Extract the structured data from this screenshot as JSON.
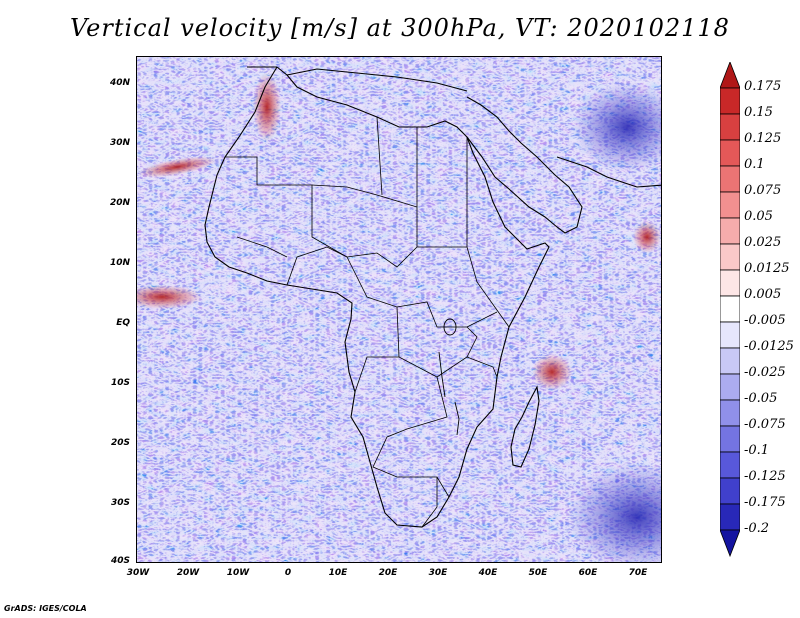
{
  "title": "Vertical velocity [m/s] at 300hPa, VT: 2020102118",
  "field": {
    "variable": "Vertical velocity",
    "units": "m/s",
    "level": "300hPa",
    "valid_time": "2020102118"
  },
  "axes": {
    "lat_labels": [
      "40N",
      "30N",
      "20N",
      "10N",
      "EQ",
      "10S",
      "20S",
      "30S",
      "40S"
    ],
    "lon_labels": [
      "30W",
      "20W",
      "10W",
      "0",
      "10E",
      "20E",
      "30E",
      "40E",
      "50E",
      "60E",
      "70E"
    ],
    "lat_values": [
      40,
      30,
      20,
      10,
      0,
      -10,
      -20,
      -30,
      -40
    ],
    "lon_values": [
      -30,
      -20,
      -10,
      0,
      10,
      20,
      30,
      40,
      50,
      60,
      70
    ],
    "lat_range": [
      -40,
      45
    ],
    "lon_range": [
      -30,
      75
    ]
  },
  "colorbar": {
    "levels": [
      "0.175",
      "0.15",
      "0.125",
      "0.1",
      "0.075",
      "0.05",
      "0.025",
      "0.0125",
      "0.005",
      "-0.005",
      "-0.0125",
      "-0.025",
      "-0.05",
      "-0.075",
      "-0.1",
      "-0.125",
      "-0.175",
      "-0.2"
    ],
    "colors": [
      "#b01818",
      "#c82828",
      "#d84040",
      "#e45858",
      "#ec7474",
      "#f29090",
      "#f6acac",
      "#fac8c8",
      "#fde6e6",
      "#ffffff",
      "#e6e6fc",
      "#c8c8f6",
      "#acacf0",
      "#9090ea",
      "#7474e2",
      "#5858da",
      "#4040cc",
      "#2828b8",
      "#1414a0"
    ]
  },
  "footer": "GrADS: IGES/COLA"
}
